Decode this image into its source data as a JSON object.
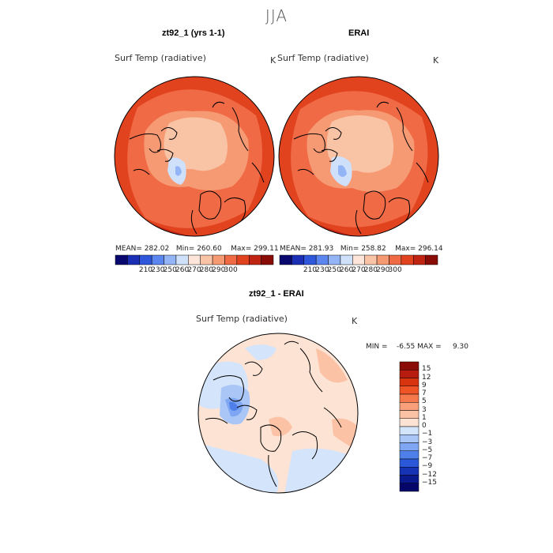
{
  "season": "JJA",
  "panels": [
    {
      "id": "model",
      "title": "zt92_1 (yrs 1-1)",
      "variable": "Surf Temp (radiative)",
      "units": "K",
      "stats": "MEAN= 282.02   Min= 260.60    Max= 299.11"
    },
    {
      "id": "obs",
      "title": "ERAI",
      "variable": "Surf Temp (radiative)",
      "units": "K",
      "stats": "MEAN= 281.93   Min= 258.82    Max= 296.14"
    }
  ],
  "abs_colorbar": {
    "colors": [
      "#08086e",
      "#1a2fb4",
      "#2f57dc",
      "#5b86f0",
      "#93b5f5",
      "#cfe0fb",
      "#fde6d9",
      "#f9c3a6",
      "#f69a74",
      "#ef6a45",
      "#e2431f",
      "#c02412",
      "#8a0c06"
    ],
    "labels": [
      "210",
      "230",
      "250",
      "260",
      "270",
      "280",
      "290",
      "300"
    ]
  },
  "diff_panel": {
    "title": "zt92_1 - ERAI",
    "variable": "Surf Temp (radiative)",
    "units": "K",
    "minmax": "MIN =    -6.55 MAX =     9.30"
  },
  "diff_colorbar": {
    "colors": [
      "#8a0c06",
      "#b81c0e",
      "#d8340f",
      "#ee5425",
      "#f5794d",
      "#f9a07a",
      "#fbc2a5",
      "#fde3d3",
      "#d4e4fb",
      "#a9c6f7",
      "#7ea6f2",
      "#4f80ea",
      "#2a58d8",
      "#1533b4",
      "#0a1a8c",
      "#06066a"
    ],
    "labels": [
      "15",
      "12",
      "9",
      "7",
      "5",
      "3",
      "1",
      "0",
      "−1",
      "−3",
      "−5",
      "−7",
      "−9",
      "−12",
      "−15"
    ]
  }
}
